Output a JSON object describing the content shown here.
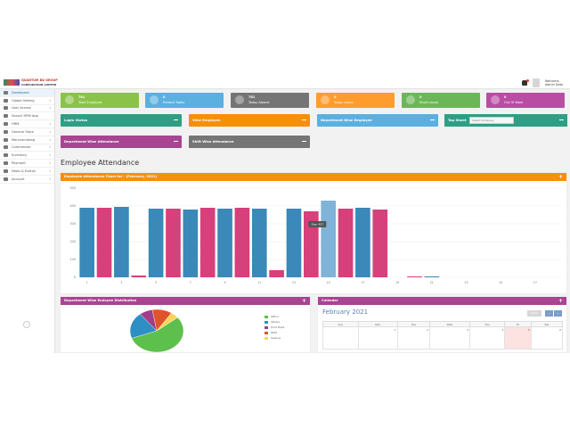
{
  "header": {
    "logo_line1": "QUANTUM BD GROUP",
    "logo_line2": "CORPORATION LIMITED",
    "user_greeting": "Welcome,",
    "user_name": "Admin Data"
  },
  "sidebar": {
    "items": [
      {
        "label": "Dashboard",
        "icon": "dashboard-icon"
      },
      {
        "label": "Global Setting",
        "icon": "gear-icon"
      },
      {
        "label": "User Access",
        "icon": "lock-icon"
      },
      {
        "label": "Search HRM App",
        "icon": "search-icon"
      },
      {
        "label": "HRM",
        "icon": "users-icon"
      },
      {
        "label": "General Store",
        "icon": "cart-icon"
      },
      {
        "label": "Merchandising",
        "icon": "tag-icon"
      },
      {
        "label": "Commercial",
        "icon": "briefcase-icon"
      },
      {
        "label": "Inventory",
        "icon": "box-icon"
      },
      {
        "label": "Payment",
        "icon": "card-icon"
      },
      {
        "label": "News & Events",
        "icon": "news-icon"
      },
      {
        "label": "Account",
        "icon": "account-icon"
      }
    ]
  },
  "stats": [
    {
      "value": "761",
      "label": "Total Employee",
      "color": "#8bc34a"
    },
    {
      "value": "0",
      "label": "Present Today",
      "color": "#5bb0e0"
    },
    {
      "value": "761",
      "label": "Today Absent",
      "color": "#757575"
    },
    {
      "value": "0",
      "label": "Today Leave",
      "color": "#ff9c2e"
    },
    {
      "value": "0",
      "label": "Short Leave",
      "color": "#6cb65a"
    },
    {
      "value": "0",
      "label": "Out Of Work",
      "color": "#b94da4"
    }
  ],
  "links": {
    "login_status": "Login Status",
    "view_employee": "View Employee",
    "dept_employee": "Department Wise Employee",
    "top_sheet": "Top Sheet",
    "top_sheet_select": "Select Company",
    "dept_attendance": "Department Wise Attendance",
    "shift_attendance": "Shift Wise Attendance"
  },
  "section_title": "Employee Attendance",
  "chart_panel_title": "Employee Attendance Chart for - (February, 2021)",
  "chart_data": {
    "type": "bar",
    "title": "Employee Attendance Chart for - (February, 2021)",
    "x": [
      1,
      2,
      3,
      4,
      5,
      6,
      7,
      8,
      9,
      10,
      11,
      12,
      13,
      14,
      15,
      16,
      17,
      18,
      19,
      20,
      21,
      22,
      23,
      24,
      25,
      26,
      27,
      28
    ],
    "xtick_labels": [
      "1",
      "3",
      "5",
      "7",
      "9",
      "11",
      "13",
      "15",
      "17",
      "19",
      "21",
      "23",
      "25",
      "27"
    ],
    "values": [
      390,
      390,
      395,
      10,
      385,
      385,
      380,
      390,
      385,
      390,
      385,
      40,
      385,
      370,
      430,
      385,
      390,
      380,
      0,
      5,
      5,
      0,
      0,
      0,
      0,
      0,
      0,
      0
    ],
    "y_ticks": [
      "0",
      "100",
      "200",
      "300",
      "400",
      "500"
    ],
    "ylim": [
      0,
      500
    ],
    "tooltip": "Day: 457",
    "colors": {
      "blue": "#3a89b8",
      "pink": "#d6407b",
      "hover": "#7fb3d8"
    }
  },
  "dist_panel_title": "Department Wise Emloyee Distribution",
  "pie": {
    "slices": [
      {
        "label": "Office",
        "value": 55,
        "color": "#5dbf4c"
      },
      {
        "label": "Others",
        "value": 20,
        "color": "#2d8fc4"
      },
      {
        "label": "Print Dept.",
        "value": 8,
        "color": "#a03d8c"
      },
      {
        "label": "HRM",
        "value": 12,
        "color": "#e0542c"
      },
      {
        "label": "Sewing",
        "value": 5,
        "color": "#f6d65a"
      }
    ]
  },
  "calendar": {
    "panel_title": "Calendar",
    "month": "February 2021",
    "today_label": "today",
    "prev": "‹",
    "next": "›",
    "weekdays": [
      "Sun",
      "Mon",
      "Tue",
      "Wed",
      "Thu",
      "Fri",
      "Sat"
    ],
    "week1": [
      "",
      "1",
      "2",
      "3",
      "4",
      "5",
      "6"
    ]
  }
}
